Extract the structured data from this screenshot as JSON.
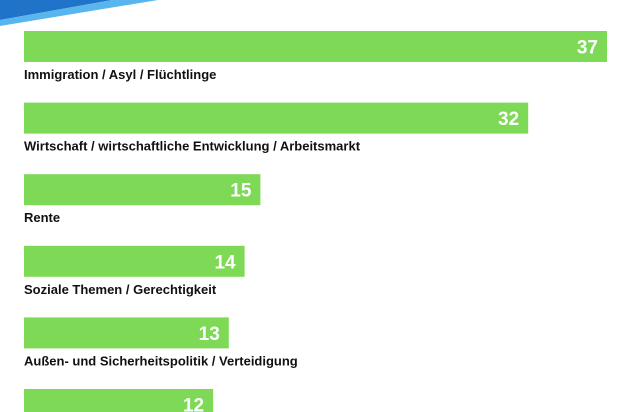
{
  "chart_data": {
    "type": "bar",
    "orientation": "horizontal",
    "categories": [
      "Immigration / Asyl / Flüchtlinge",
      "Wirtschaft / wirtschaftliche Entwicklung / Arbeitsmarkt",
      "Rente",
      "Soziale Themen / Gerechtigkeit",
      "Außen- und Sicherheitspolitik / Verteidigung",
      ""
    ],
    "values": [
      37,
      32,
      15,
      14,
      13,
      12
    ],
    "value_labels": [
      "37",
      "32",
      "15",
      "14",
      "13",
      "12"
    ],
    "xlim": [
      0,
      37
    ],
    "grid": false,
    "legend": "none"
  },
  "colors": {
    "bar": "#7ed957",
    "bar_text": "#ffffff",
    "label_text": "#111111",
    "accent_dark": "#1f73c8",
    "accent_light": "#59b5ee",
    "background": "#ffffff"
  }
}
